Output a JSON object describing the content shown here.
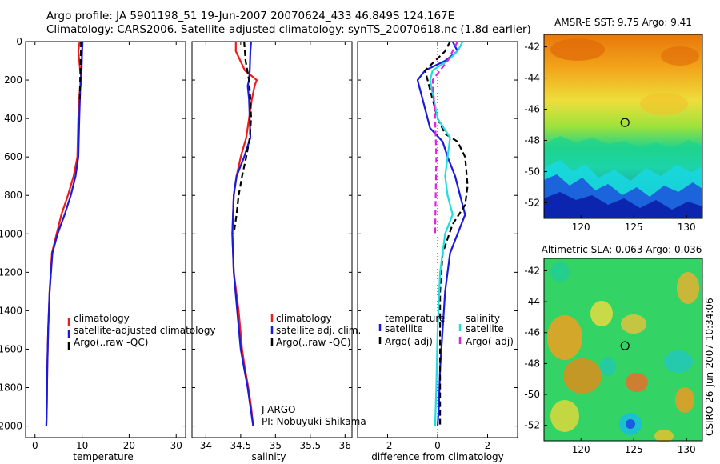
{
  "figure": {
    "title_line1": "Argo profile: JA 5901198_51 19-Jun-2007 20070624_433 46.849S 124.167E",
    "title_line2": "Climatology: CARS2006. Satellite-adjusted climatology: synTS_20070618.nc (1.8d earlier)",
    "credit": "CSIRO 26-Jun-2007 10:34:06"
  },
  "colors": {
    "climatology": "#ee1c1c",
    "satellite": "#1a1adc",
    "argo": "#000000",
    "satellite_salinity": "#22dddd",
    "argo_salinity": "#dd22dd",
    "marker": "#000000"
  },
  "chart_data": [
    {
      "id": "temperature",
      "type": "line",
      "xlabel": "temperature",
      "ylabel": "",
      "xlim": [
        -2,
        32
      ],
      "ylim": [
        2060,
        0
      ],
      "x_ticks": [
        0,
        10,
        20,
        30
      ],
      "x_tick_labels": [
        "0",
        "10",
        "20",
        "30"
      ],
      "y_ticks": [
        0,
        200,
        400,
        600,
        800,
        1000,
        1200,
        1400,
        1600,
        1800,
        2000
      ],
      "y_tick_labels": [
        "0",
        "200",
        "400",
        "600",
        "800",
        "1000",
        "1200",
        "1400",
        "1600",
        "1800",
        "2000"
      ],
      "legend": [
        "climatology",
        "satellite-adjusted climatology",
        "Argo(..raw -QC)"
      ],
      "legend_position": "lower-right",
      "series": [
        {
          "name": "climatology",
          "style": "solid",
          "color_key": "climatology",
          "x": [
            9.5,
            9.2,
            9.6,
            9.9,
            9.5,
            9.2,
            9.0,
            8.2,
            7.0,
            5.6,
            4.6,
            3.6,
            3.1,
            2.8,
            2.6,
            2.5,
            2.4
          ],
          "y": [
            0,
            50,
            150,
            200,
            260,
            400,
            600,
            700,
            800,
            900,
            1000,
            1100,
            1300,
            1500,
            1700,
            1900,
            2000
          ]
        },
        {
          "name": "satellite-adjusted climatology",
          "style": "solid",
          "color_key": "satellite",
          "x": [
            10.1,
            10.0,
            9.9,
            9.7,
            9.6,
            9.4,
            9.2,
            8.6,
            7.6,
            6.3,
            4.8,
            3.7,
            3.1,
            2.8,
            2.6,
            2.5,
            2.4
          ],
          "y": [
            0,
            50,
            150,
            200,
            260,
            400,
            600,
            700,
            800,
            900,
            1000,
            1100,
            1300,
            1500,
            1700,
            1900,
            2000
          ]
        },
        {
          "name": "Argo(..raw -QC)",
          "style": "dashed",
          "color_key": "argo",
          "x": [
            9.8,
            9.7,
            9.6,
            9.5
          ],
          "y": [
            0,
            100,
            200,
            300
          ]
        }
      ]
    },
    {
      "id": "salinity",
      "type": "line",
      "xlabel": "salinity",
      "ylabel": "",
      "xlim": [
        33.8,
        36.1
      ],
      "ylim": [
        2060,
        0
      ],
      "x_ticks": [
        34,
        34.5,
        35,
        35.5,
        36
      ],
      "x_tick_labels": [
        "34",
        "34.5",
        "35",
        "35.5",
        "36"
      ],
      "legend": [
        "climatology",
        "satellite adj. clim.",
        "Argo(..raw -QC)"
      ],
      "legend_position": "lower-right",
      "annotation": [
        "J-ARGO",
        "PI: Nobuyuki Shikama"
      ],
      "series": [
        {
          "name": "climatology",
          "style": "solid",
          "color_key": "climatology",
          "x": [
            34.43,
            34.43,
            34.56,
            34.73,
            34.7,
            34.66,
            34.58,
            34.5,
            34.44,
            34.4,
            34.38,
            34.4,
            34.47,
            34.52,
            34.56,
            34.61,
            34.65,
            34.68
          ],
          "y": [
            0,
            50,
            150,
            200,
            230,
            300,
            500,
            600,
            700,
            800,
            1000,
            1200,
            1400,
            1600,
            1700,
            1800,
            1900,
            2000
          ]
        },
        {
          "name": "satellite adj. clim.",
          "style": "solid",
          "color_key": "satellite",
          "x": [
            34.65,
            34.64,
            34.63,
            34.62,
            34.6,
            34.62,
            34.64,
            34.55,
            34.44,
            34.4,
            34.38,
            34.4,
            34.45,
            34.5,
            34.55,
            34.6,
            34.64,
            34.68
          ],
          "y": [
            0,
            50,
            150,
            200,
            230,
            300,
            500,
            600,
            700,
            800,
            1000,
            1200,
            1400,
            1600,
            1700,
            1800,
            1900,
            2000
          ]
        },
        {
          "name": "Argo(..raw -QC)",
          "style": "dashed",
          "color_key": "argo",
          "x": [
            34.55,
            34.57,
            34.62,
            34.64,
            34.65,
            34.63,
            34.58,
            34.52,
            34.47,
            34.44,
            34.4
          ],
          "y": [
            0,
            100,
            200,
            300,
            400,
            500,
            600,
            700,
            800,
            900,
            1000
          ]
        }
      ]
    },
    {
      "id": "difference",
      "type": "line",
      "xlabel": "difference from climatology",
      "ylabel": "",
      "xlim": [
        -3.2,
        3.2
      ],
      "ylim": [
        2060,
        0
      ],
      "x_ticks": [
        -2,
        0,
        2
      ],
      "x_tick_labels": [
        "-2",
        "0",
        "2"
      ],
      "zero_line": 0,
      "legend": [
        "temperature",
        "satellite",
        "Argo(-adj)",
        "salinity",
        "satellite",
        "Argo(-adj)"
      ],
      "legend_position": "lower-center",
      "series": [
        {
          "name": "temperature satellite",
          "style": "solid",
          "color_key": "satellite",
          "x": [
            0.6,
            0.8,
            0.3,
            -0.5,
            -0.8,
            -0.7,
            -0.5,
            -0.3,
            0.2,
            0.4,
            0.7,
            1.1,
            0.8,
            0.5,
            0.3,
            0.2,
            0.1,
            0.05,
            0.0
          ],
          "y": [
            0,
            50,
            100,
            150,
            200,
            250,
            350,
            450,
            520,
            600,
            700,
            900,
            1000,
            1100,
            1300,
            1500,
            1700,
            1900,
            2000
          ]
        },
        {
          "name": "temperature Argo(-adj)",
          "style": "dashed",
          "color_key": "argo",
          "x": [
            0.5,
            0.3,
            -0.1,
            -0.5,
            -0.3,
            0.0,
            0.3,
            0.8,
            1.1,
            1.2,
            1.1,
            0.6,
            0.2,
            0.1,
            0.1,
            0.1
          ],
          "y": [
            0,
            50,
            100,
            150,
            250,
            400,
            480,
            520,
            600,
            750,
            850,
            950,
            1100,
            1300,
            1600,
            2000
          ]
        },
        {
          "name": "salinity satellite",
          "style": "solid",
          "color_key": "satellite_salinity",
          "x": [
            1.0,
            0.8,
            0.4,
            -0.2,
            -0.3,
            0.0,
            0.5,
            0.4,
            0.3,
            0.4,
            0.6,
            0.3,
            0.1,
            0.0,
            -0.05,
            -0.1
          ],
          "y": [
            0,
            50,
            100,
            150,
            200,
            400,
            500,
            600,
            700,
            800,
            900,
            1000,
            1200,
            1500,
            1800,
            2000
          ]
        },
        {
          "name": "salinity Argo(-adj)",
          "style": "dashed",
          "color_key": "argo_salinity",
          "x": [
            0.8,
            0.4,
            -0.2,
            -0.1,
            -0.05,
            -0.1
          ],
          "y": [
            0,
            100,
            200,
            400,
            600,
            1000
          ]
        }
      ]
    },
    {
      "id": "sst_map",
      "type": "heatmap",
      "title": "AMSR-E SST: 9.75 Argo: 9.41",
      "x_ticks": [
        120,
        125,
        130
      ],
      "x_tick_labels": [
        "120",
        "125",
        "130"
      ],
      "y_ticks": [
        -42,
        -44,
        -46,
        -48,
        -50,
        -52
      ],
      "y_tick_labels": [
        "-42",
        "-44",
        "-46",
        "-48",
        "-50",
        "-52"
      ],
      "xlim": [
        116.5,
        131.5
      ],
      "ylim": [
        -53,
        -41.2
      ],
      "marker": {
        "lon": 124.167,
        "lat": -46.849
      }
    },
    {
      "id": "sla_map",
      "type": "heatmap",
      "title": "Altimetric SLA: 0.063 Argo: 0.036",
      "x_ticks": [
        120,
        125,
        130
      ],
      "x_tick_labels": [
        "120",
        "125",
        "130"
      ],
      "y_ticks": [
        -42,
        -44,
        -46,
        -48,
        -50,
        -52
      ],
      "y_tick_labels": [
        "-42",
        "-44",
        "-46",
        "-48",
        "-50",
        "-52"
      ],
      "xlim": [
        116.5,
        131.5
      ],
      "ylim": [
        -53,
        -41.2
      ],
      "marker": {
        "lon": 124.167,
        "lat": -46.849
      }
    }
  ]
}
